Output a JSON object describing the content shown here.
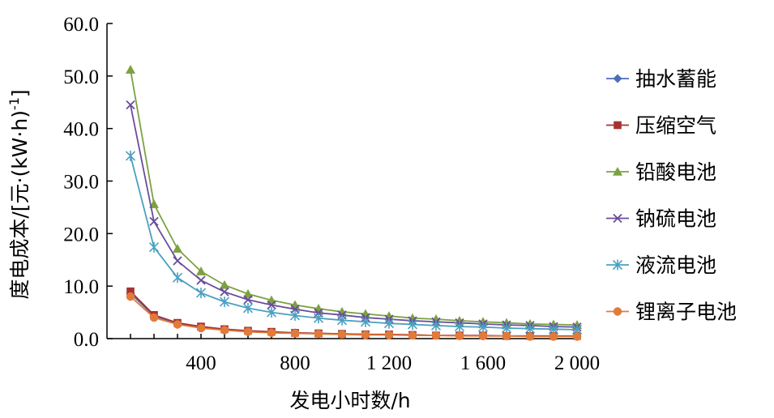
{
  "chart_data": {
    "type": "line",
    "xlabel": "发电小时数/h",
    "ylabel": "度电成本/[元·(kW·h)",
    "ylabel_sup": "-1",
    "ylabel_close": "]",
    "xlim": [
      0,
      2000
    ],
    "ylim": [
      0,
      60
    ],
    "x_ticks": [
      {
        "value": 400,
        "label": "400"
      },
      {
        "value": 800,
        "label": "800"
      },
      {
        "value": 1200,
        "label": "1 200"
      },
      {
        "value": 1600,
        "label": "1 600"
      },
      {
        "value": 2000,
        "label": "2 000"
      }
    ],
    "y_ticks": [
      {
        "value": 0,
        "label": "0.0"
      },
      {
        "value": 10,
        "label": "10.0"
      },
      {
        "value": 20,
        "label": "20.0"
      },
      {
        "value": 30,
        "label": "30.0"
      },
      {
        "value": 40,
        "label": "40.0"
      },
      {
        "value": 50,
        "label": "50.0"
      },
      {
        "value": 60,
        "label": "60.0"
      }
    ],
    "grid": false,
    "legend_position": "right",
    "x": [
      100,
      200,
      300,
      400,
      500,
      600,
      700,
      800,
      900,
      1000,
      1100,
      1200,
      1300,
      1400,
      1500,
      1600,
      1700,
      1800,
      1900,
      2000
    ],
    "series": [
      {
        "name": "抽水蓄能",
        "color": "#4a6fb5",
        "marker": "diamond",
        "values": [
          8.6,
          4.3,
          2.9,
          2.2,
          1.7,
          1.4,
          1.2,
          1.1,
          1.0,
          0.9,
          0.8,
          0.7,
          0.7,
          0.6,
          0.6,
          0.5,
          0.5,
          0.5,
          0.5,
          0.4
        ]
      },
      {
        "name": "压缩空气",
        "color": "#a83232",
        "marker": "square",
        "values": [
          9.0,
          4.5,
          3.0,
          2.3,
          1.8,
          1.5,
          1.3,
          1.1,
          1.0,
          0.9,
          0.8,
          0.8,
          0.7,
          0.6,
          0.6,
          0.6,
          0.5,
          0.5,
          0.5,
          0.5
        ]
      },
      {
        "name": "铅酸电池",
        "color": "#7ba23f",
        "marker": "triangle",
        "values": [
          51.2,
          25.6,
          17.1,
          12.8,
          10.2,
          8.5,
          7.3,
          6.4,
          5.7,
          5.1,
          4.7,
          4.3,
          3.9,
          3.7,
          3.4,
          3.2,
          3.0,
          2.8,
          2.7,
          2.6
        ]
      },
      {
        "name": "钠硫电池",
        "color": "#6a4c9c",
        "marker": "x",
        "values": [
          44.5,
          22.3,
          14.8,
          11.1,
          8.9,
          7.4,
          6.4,
          5.6,
          4.9,
          4.5,
          4.0,
          3.7,
          3.4,
          3.2,
          3.0,
          2.8,
          2.6,
          2.5,
          2.3,
          2.2
        ]
      },
      {
        "name": "液流电池",
        "color": "#4aa0c0",
        "marker": "star",
        "values": [
          34.8,
          17.4,
          11.6,
          8.7,
          7.0,
          5.8,
          5.0,
          4.4,
          3.9,
          3.5,
          3.2,
          2.9,
          2.7,
          2.5,
          2.3,
          2.2,
          2.0,
          1.9,
          1.8,
          1.7
        ]
      },
      {
        "name": "锂离子电池",
        "color": "#e07b39",
        "marker": "circle",
        "values": [
          8.0,
          4.0,
          2.7,
          2.0,
          1.6,
          1.3,
          1.1,
          1.0,
          0.9,
          0.8,
          0.7,
          0.7,
          0.6,
          0.6,
          0.5,
          0.5,
          0.5,
          0.4,
          0.4,
          0.4
        ]
      }
    ]
  }
}
